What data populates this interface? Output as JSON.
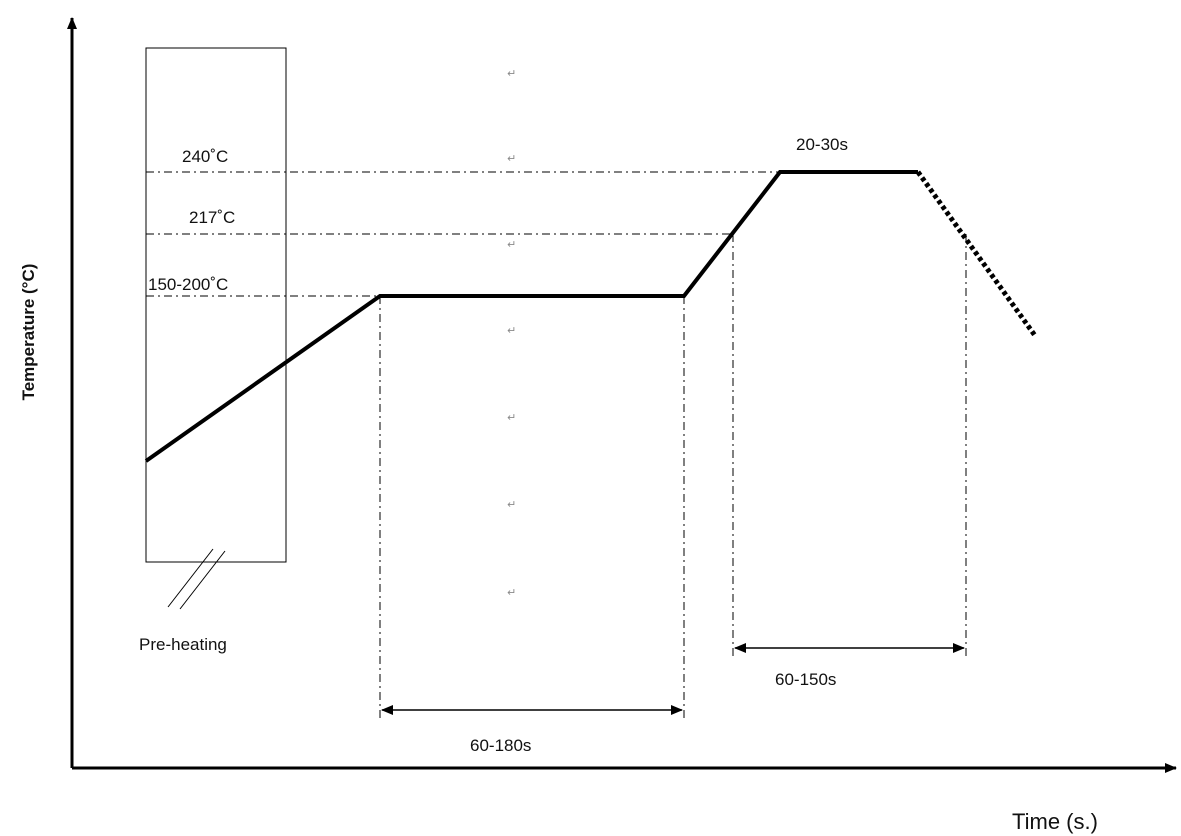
{
  "axes": {
    "x_label": "Time (s.)",
    "y_label": "Temperature  (°C)"
  },
  "temperature_levels": {
    "peak": "240˚C",
    "liquidus": "217˚C",
    "soak": "150-200˚C"
  },
  "durations": {
    "peak_time": "20-30s",
    "soak_time": "60-180s",
    "above_liquidus_time": "60-150s"
  },
  "zones": {
    "preheat_label": "Pre-heating"
  },
  "marks": {
    "paragraph_mark": "↵"
  },
  "colors": {
    "profile_line": "#000000",
    "guide_line": "#000000",
    "background": "#ffffff"
  }
}
